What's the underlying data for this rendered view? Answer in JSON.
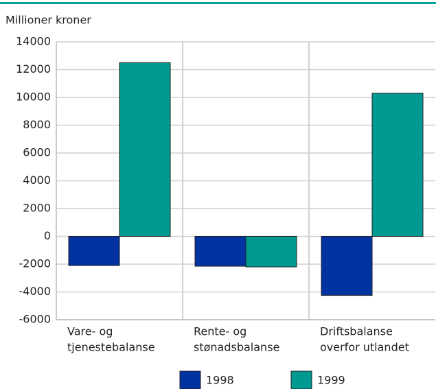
{
  "chart_data": {
    "type": "bar",
    "y_label": "Millioner kroner",
    "categories": [
      [
        "Vare- og",
        "tjenestebalanse"
      ],
      [
        "Rente- og",
        "stønadsbalanse"
      ],
      [
        "Driftsbalanse",
        "overfor utlandet"
      ]
    ],
    "series": [
      {
        "name": "1998",
        "color": "#0033a0",
        "values": [
          -2100,
          -2150,
          -4250
        ]
      },
      {
        "name": "1999",
        "color": "#009a93",
        "values": [
          12500,
          -2200,
          10300
        ]
      }
    ],
    "ylim": [
      -6000,
      14000
    ],
    "yticks": [
      -6000,
      -4000,
      -2000,
      0,
      2000,
      4000,
      6000,
      8000,
      10000,
      12000,
      14000
    ],
    "grid": true
  }
}
